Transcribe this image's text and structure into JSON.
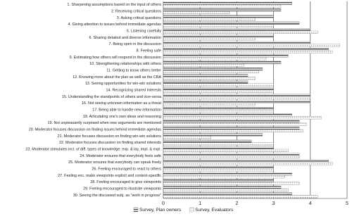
{
  "chart_data": {
    "type": "hbar",
    "categories": [
      "1. Sharpening assumptions based on the input of others",
      "2. Receiving critical questions",
      "3. Asking critical questions",
      "4. Giving attention to issues behind immediate agendas",
      "5. Listening carefully",
      "6. Sharing detailed and diverse information",
      "7. Being open in the discussion",
      "8. Feeling safe",
      "9. Estimating how others will respond in the discussion",
      "10. Strengthening relationships with others",
      "11. Getting to know others better",
      "12. Knowing more about the plan as well as the CBA",
      "13. Seeing opportunities for win-win solutions",
      "14. Recognizing shared interests",
      "15. Understanding the standpoints of others and vice-versa",
      "16. Not seeing unknown information as a threat",
      "17. Being able to handle new information",
      "18. Articulating one's own ideas and reasoning",
      "19. Not unpleasantly surprised when new arguments are mentioned",
      "20. Moderator focuses discussion on finding issues behind immediate agendas",
      "21. Moderator focuses discussion on finding win-win solutions",
      "22. Moderator focuses discussion on finding shared interests",
      "23. Moderator stimulates incl. of diff. types of knowledge: exp. & lay, impl. & expl.",
      "24. Moderator ensures that everybody feels safe",
      "25. Moderator ensures that everybody can speak freely",
      "26. Feeling encouraged to react to others",
      "27. Feeling enc. make viewpoints explicit and context-specific",
      "28. Feeling encouraged to give viewpoints",
      "29. Feeling encouraged to illustrate viewpoints",
      "30. Seeing the discussed subj. as \"work in progress\""
    ],
    "series": [
      {
        "name": "Survey, Plan owners",
        "color": "#555555",
        "values": [
          3.5,
          3.2,
          3.0,
          3.7,
          4.0,
          3.0,
          4.0,
          4.5,
          3.4,
          3.2,
          2.7,
          2.3,
          2.3,
          3.0,
          4.0,
          4.0,
          3.0,
          3.5,
          3.7,
          3.7,
          2.7,
          2.4,
          3.0,
          3.7,
          4.5,
          3.0,
          3.5,
          3.0,
          3.2,
          3.5
        ]
      },
      {
        "name": "Survey, Evaluators",
        "color": "#aaaaaa",
        "values": [
          3.2,
          1.8,
          2.5,
          3.0,
          4.2,
          2.5,
          4.8,
          4.6,
          2.8,
          2.2,
          2.6,
          2.5,
          3.0,
          3.0,
          4.0,
          2.5,
          3.0,
          4.3,
          3.9,
          3.8,
          1.3,
          3.0,
          3.4,
          3.7,
          4.6,
          3.0,
          3.3,
          3.7,
          3.4,
          4.2
        ]
      }
    ],
    "xlim": [
      0,
      5
    ],
    "xticks": [
      0,
      1,
      2,
      3,
      4,
      5
    ],
    "grid": true
  }
}
